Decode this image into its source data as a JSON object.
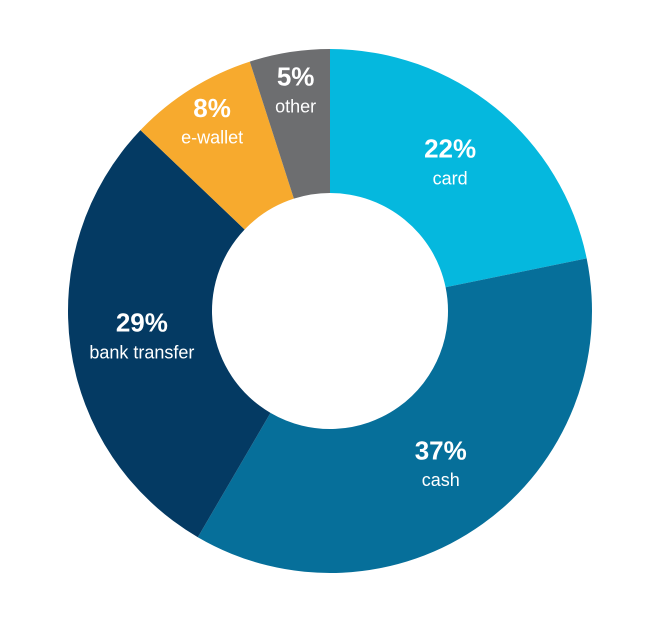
{
  "chart_data": {
    "type": "donut",
    "categories": [
      "card",
      "cash",
      "bank transfer",
      "e-wallet",
      "other"
    ],
    "values": [
      22,
      37,
      29,
      8,
      5
    ],
    "value_labels": [
      "22%",
      "37%",
      "29%",
      "8%",
      "5%"
    ],
    "colors": [
      "#05b8de",
      "#066f9a",
      "#043a63",
      "#f7aa2e",
      "#6d6e70"
    ]
  }
}
